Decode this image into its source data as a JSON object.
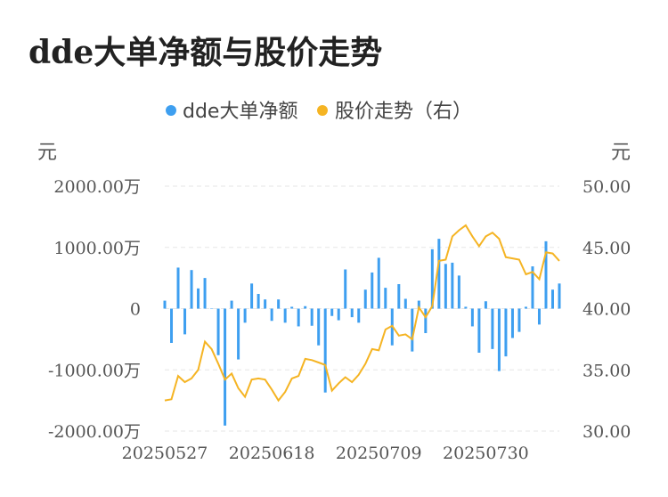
{
  "page_title": "dde大单净额与股价走势",
  "chart_data": {
    "type": "bar+line",
    "legend": [
      {
        "name": "dde大单净额",
        "color": "#3e9ff0"
      },
      {
        "name": "股价走势（右）",
        "color": "#f5b423"
      }
    ],
    "left_unit": "元",
    "right_unit": "元",
    "left_ticks": [
      "2000.00万",
      "1000.00万",
      "0",
      "-1000.00万",
      "-2000.00万"
    ],
    "right_ticks": [
      "50.00",
      "45.00",
      "40.00",
      "35.00",
      "30.00"
    ],
    "left_range": [
      -2000,
      2000
    ],
    "right_range": [
      30,
      50
    ],
    "x_ticks": [
      "20250527",
      "20250618",
      "20250709",
      "20250730"
    ],
    "x_tick_indices": [
      0,
      16,
      32,
      48
    ],
    "bars_wan": [
      130,
      -560,
      670,
      -420,
      630,
      330,
      500,
      0,
      -760,
      -1910,
      130,
      -830,
      -230,
      410,
      240,
      150,
      -200,
      150,
      -230,
      30,
      -290,
      40,
      -280,
      -600,
      -1370,
      -120,
      -190,
      640,
      -140,
      -230,
      310,
      590,
      830,
      340,
      -600,
      400,
      160,
      -700,
      130,
      -400,
      970,
      1140,
      730,
      750,
      540,
      30,
      -290,
      -720,
      120,
      -660,
      -1020,
      -780,
      -480,
      -380,
      30,
      690,
      -260,
      1100,
      310,
      410
    ],
    "price": [
      32.5,
      32.6,
      34.5,
      34.0,
      34.3,
      35.0,
      37.3,
      36.7,
      35.5,
      34.2,
      34.7,
      33.5,
      32.8,
      34.2,
      34.3,
      34.2,
      33.4,
      32.5,
      33.2,
      34.3,
      34.5,
      35.9,
      35.8,
      35.6,
      35.4,
      33.3,
      33.9,
      34.4,
      34.0,
      34.6,
      35.5,
      36.7,
      36.6,
      38.3,
      38.6,
      37.8,
      37.9,
      37.5,
      40.1,
      39.3,
      40.2,
      43.9,
      44.0,
      45.9,
      46.4,
      46.8,
      45.9,
      45.1,
      45.9,
      46.2,
      45.7,
      44.2,
      44.1,
      44.0,
      42.8,
      43.0,
      42.4,
      44.6,
      44.5,
      43.9
    ],
    "grid": true
  }
}
